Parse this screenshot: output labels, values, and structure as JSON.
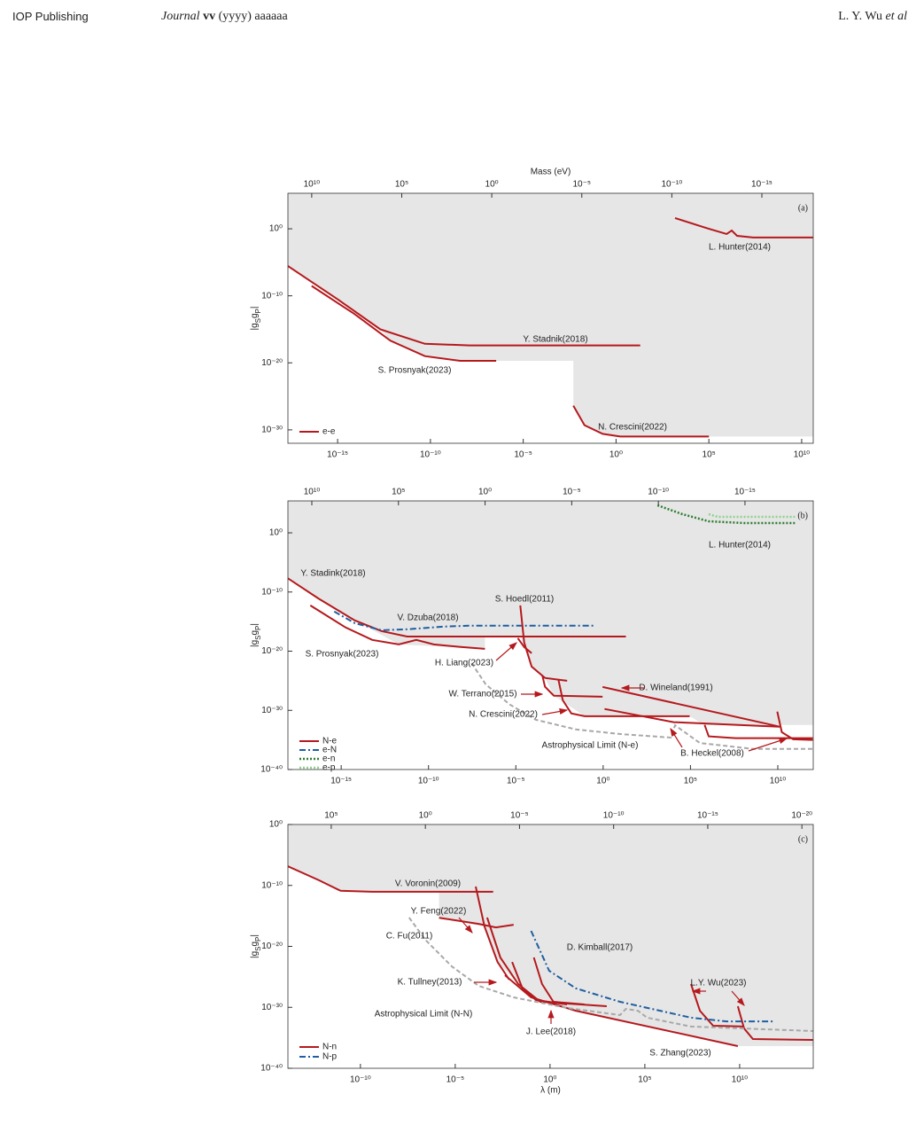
{
  "header": {
    "publisher": "IOP Publishing",
    "journal": "Journal",
    "volume": "vv",
    "year_pages": "(yyyy) aaaaaa",
    "authors": "L. Y. Wu",
    "et_al": "et al"
  },
  "chart_data": [
    {
      "type": "line",
      "panel_label": "(a)",
      "x2_label": "Mass (eV)",
      "y_label": "|gSgP|",
      "xscale": "log",
      "yscale": "log",
      "xlim": [
        2.1e-18,
        42000000000.0
      ],
      "x2lim": [
        210000000000.0,
        1.4e-18
      ],
      "ylim": [
        1e-32,
        200000.0
      ],
      "xticks": [
        {
          "value": 1e-15,
          "label": "10⁻¹⁵"
        },
        {
          "value": 1e-10,
          "label": "10⁻¹⁰"
        },
        {
          "value": 1e-05,
          "label": "10⁻⁵"
        },
        {
          "value": 1,
          "label": "10⁰"
        },
        {
          "value": 100000.0,
          "label": "10⁵"
        },
        {
          "value": 10000000000.0,
          "label": "10¹⁰"
        }
      ],
      "x2ticks": [
        {
          "value": 10000000000.0,
          "label": "10¹⁰"
        },
        {
          "value": 100000.0,
          "label": "10⁵"
        },
        {
          "value": 1,
          "label": "10⁰"
        },
        {
          "value": 1e-05,
          "label": "10⁻⁵"
        },
        {
          "value": 1e-10,
          "label": "10⁻¹⁰"
        },
        {
          "value": 1e-15,
          "label": "10⁻¹⁵"
        }
      ],
      "yticks": [
        {
          "value": 1,
          "label": "10⁰"
        },
        {
          "value": 1e-10,
          "label": "10⁻¹⁰"
        },
        {
          "value": 1e-20,
          "label": "10⁻²⁰"
        },
        {
          "value": 1e-30,
          "label": "10⁻³⁰"
        }
      ],
      "shade": {
        "color": "#e6e6e6",
        "x": [
          2e-18,
          1e-15,
          2e-13,
          7e-13,
          5e-11,
          4e-09,
          3.5e-07,
          0.005,
          0.005,
          0.02,
          0.19,
          1.7,
          40000000000.0,
          40000000000.0,
          2e-18
        ],
        "y": [
          3e-06,
          3e-11,
          1e-15,
          2e-17,
          1e-19,
          2e-20,
          2e-20,
          2e-20,
          4e-27,
          5e-30,
          2.5e-31,
          1e-31,
          1e-31,
          200000.0,
          200000.0
        ]
      },
      "legend": [
        {
          "name": "e-e",
          "color": "#b5191d",
          "dash": "solid"
        }
      ],
      "curves": [
        {
          "color": "#b5191d",
          "dash": "solid",
          "x": [
            2e-18,
            1e-15,
            2e-13,
            5e-11,
            1.3e-08,
            20
          ],
          "y": [
            3e-06,
            3e-11,
            1e-15,
            7e-18,
            4e-18,
            4e-18
          ]
        },
        {
          "color": "#b5191d",
          "dash": "solid",
          "x": [
            4e-17,
            8e-15,
            7e-13,
            5e-11,
            4e-09,
            3.5e-07
          ],
          "y": [
            3e-09,
            2e-13,
            2e-17,
            1e-19,
            2e-20,
            2e-20
          ]
        },
        {
          "color": "#b5191d",
          "dash": "solid",
          "x": [
            0.005,
            0.02,
            0.19,
            1.7,
            100000.0
          ],
          "y": [
            4e-27,
            5e-30,
            2.5e-31,
            1e-31,
            1e-31
          ]
        },
        {
          "color": "#b5191d",
          "dash": "solid",
          "x": [
            1500.0,
            100000.0,
            900000.0,
            1700000.0,
            3300000.0,
            24000000.0,
            40000000000.0
          ],
          "y": [
            40,
            1,
            0.17,
            0.56,
            0.09,
            0.05,
            0.05
          ]
        }
      ],
      "annotations": [
        "L. Hunter(2014)",
        "Y. Stadnik(2018)",
        "S. Prosnyak(2023)",
        "N. Crescini(2022)"
      ]
    },
    {
      "type": "line",
      "panel_label": "(b)",
      "y_label": "|gSgP|",
      "xscale": "log",
      "yscale": "log",
      "xlim": [
        8.9e-19,
        1070000000000.0
      ],
      "x2lim": [
        240000000000.0,
        1.15e-19
      ],
      "ylim": [
        1e-40,
        250000.0
      ],
      "xticks": [
        {
          "value": 1e-15,
          "label": "10⁻¹⁵"
        },
        {
          "value": 1e-10,
          "label": "10⁻¹⁰"
        },
        {
          "value": 1e-05,
          "label": "10⁻⁵"
        },
        {
          "value": 1,
          "label": "10⁰"
        },
        {
          "value": 100000.0,
          "label": "10⁵"
        },
        {
          "value": 10000000000.0,
          "label": "10¹⁰"
        }
      ],
      "x2ticks": [
        {
          "value": 10000000000.0,
          "label": "10¹⁰"
        },
        {
          "value": 100000.0,
          "label": "10⁵"
        },
        {
          "value": 1,
          "label": "10⁰"
        },
        {
          "value": 1e-05,
          "label": "10⁻⁵"
        },
        {
          "value": 1e-10,
          "label": "10⁻¹⁰"
        },
        {
          "value": 1e-15,
          "label": "10⁻¹⁵"
        }
      ],
      "yticks": [
        {
          "value": 1,
          "label": "10⁰"
        },
        {
          "value": 1e-10,
          "label": "10⁻¹⁰"
        },
        {
          "value": 1e-20,
          "label": "10⁻²⁰"
        },
        {
          "value": 1e-30,
          "label": "10⁻³⁰"
        },
        {
          "value": 1e-40,
          "label": "10⁻⁴⁰"
        }
      ],
      "shade": {
        "color": "#e6e6e6",
        "x": [
          9e-19,
          6e-15,
          2e-12,
          1.7e-07,
          1.7e-07,
          1.8e-05,
          8e-05,
          0.00047,
          0.0015,
          0.089,
          90000.0,
          650000.0,
          1000000000000.0,
          1000000000000.0,
          9e-19
        ],
        "y": [
          2e-08,
          1.6e-15,
          1.4e-19,
          2.5e-20,
          3e-18,
          3e-18,
          2.5e-23,
          3e-25,
          3e-28,
          1e-31,
          1e-31,
          3.4e-33,
          3.4e-33,
          250000.0,
          250000.0
        ]
      },
      "legend": [
        {
          "name": "N-e",
          "color": "#b5191d",
          "dash": "solid"
        },
        {
          "name": "e-N",
          "color": "#1f5fa0",
          "dash": "dashdot"
        },
        {
          "name": "e-n",
          "color": "#2e7d32",
          "dash": "dotted"
        },
        {
          "name": "e-p",
          "color": "#8fd18f",
          "dash": "dotted"
        }
      ],
      "curves": [
        {
          "color": "#b5191d",
          "dash": "solid",
          "x": [
            9e-19,
            5e-17,
            6e-15,
            2e-13,
            6e-12,
            7e-09,
            20
          ],
          "y": [
            2e-08,
            8e-12,
            1.6e-15,
            2.5e-17,
            3e-18,
            3e-18,
            3e-18
          ]
        },
        {
          "color": "#b5191d",
          "dash": "solid",
          "x": [
            1.7e-17,
            1.8e-15,
            6e-14,
            2e-12,
            2e-11,
            2e-10,
            7e-09,
            1.7e-07
          ],
          "y": [
            5.5e-13,
            1e-16,
            8e-19,
            1.4e-19,
            8e-19,
            1.4e-19,
            5e-20,
            2.5e-20
          ]
        },
        {
          "color": "#1f5fa0",
          "dash": "dashdot",
          "x": [
            4e-16,
            6e-15,
            2e-13,
            6e-12,
            7e-10,
            2e-08,
            0.36
          ],
          "y": [
            5e-14,
            5.5e-16,
            3.5e-17,
            5e-17,
            1.4e-16,
            2e-16,
            2e-16
          ]
        },
        {
          "color": "#b5191d",
          "dash": "solid",
          "x": [
            1.8e-05,
            3e-05,
            8e-05,
            0.00047,
            0.0087
          ],
          "y": [
            5.5e-13,
            3e-19,
            2.5e-23,
            3e-25,
            1e-25
          ]
        },
        {
          "color": "#b5191d",
          "dash": "solid",
          "x": [
            1.3e-05,
            3e-05,
            8e-05
          ],
          "y": [
            1.6e-18,
            5e-20,
            4.5e-21
          ]
        },
        {
          "color": "#b5191d",
          "dash": "solid",
          "x": [
            0.00033,
            0.00047,
            0.0015,
            0.93
          ],
          "y": [
            8e-25,
            1e-26,
            3e-28,
            2e-28
          ]
        },
        {
          "color": "#b5191d",
          "dash": "solid",
          "x": [
            0.0027,
            0.0049,
            0.015,
            0.089,
            90000.0
          ],
          "y": [
            2e-25,
            5e-29,
            3e-31,
            1e-31,
            1e-31
          ]
        },
        {
          "color": "#b5191d",
          "dash": "solid",
          "x": [
            0.93,
            13000000000.0
          ],
          "y": [
            9e-27,
            1.7e-33
          ]
        },
        {
          "color": "#b5191d",
          "dash": "solid",
          "x": [
            1.2,
            11000.0,
            13000000000.0
          ],
          "y": [
            1.7e-30,
            1e-32,
            1.7e-33
          ]
        },
        {
          "color": "#b5191d",
          "dash": "solid",
          "x": [
            650000.0,
            1100000.0,
            38000000.0,
            1000000000000.0
          ],
          "y": [
            3.4e-33,
            4e-35,
            2e-35,
            2e-35
          ]
        },
        {
          "color": "#b5191d",
          "dash": "solid",
          "x": [
            9300000000.0,
            17000000000.0,
            76000000000.0,
            1000000000000.0
          ],
          "y": [
            6e-31,
            2e-34,
            1.3e-35,
            1e-35
          ]
        },
        {
          "color": "#a8a8a8",
          "dash": "dashed",
          "x": [
            2.9e-08,
            1.9e-07,
            4.4e-06,
            0.00014,
            0.028,
            9.8,
            7600.0,
            13000.0,
            350000.0,
            400000000.0,
            1000000000000.0
          ],
          "y": [
            1e-22,
            2.5e-26,
            1e-29,
            2.5e-32,
            6e-34,
            1e-34,
            2.5e-35,
            3e-33,
            3e-36,
            3e-37,
            3e-37
          ]
        },
        {
          "color": "#2e7d32",
          "dash": "dotted",
          "x": [
            1300.0,
            35000.0,
            1100000.0,
            120000000.0,
            95000000000.0
          ],
          "y": [
            45000.0,
            1400.0,
            90,
            45,
            45
          ]
        },
        {
          "color": "#8fd18f",
          "dash": "dotted",
          "x": [
            1100000.0,
            3700000.0,
            120000000.0,
            95000000000.0
          ],
          "y": [
            1400.0,
            500,
            500,
            500
          ]
        }
      ],
      "annotations": [
        "L. Hunter(2014)",
        "Y. Stadink(2018)",
        "V. Dzuba(2018)",
        "S. Hoedl(2011)",
        "S. Prosnyak(2023)",
        "H. Liang(2023)",
        "W. Terrano(2015)",
        "D. Wineland(1991)",
        "N. Crescini(2022)",
        "Astrophysical Limit (N-e)",
        "B. Heckel(2008)"
      ]
    },
    {
      "type": "line",
      "panel_label": "(c)",
      "x_label": "λ (m)",
      "y_label": "|gSgP|",
      "xscale": "log",
      "yscale": "log",
      "xlim": [
        1.5e-14,
        76000000000000.0
      ],
      "x2lim": [
        20000000.0,
        2.5e-21
      ],
      "ylim": [
        1e-40,
        1
      ],
      "xticks": [
        {
          "value": 1e-10,
          "label": "10⁻¹⁰"
        },
        {
          "value": 1e-05,
          "label": "10⁻⁵"
        },
        {
          "value": 1,
          "label": "10⁰"
        },
        {
          "value": 100000.0,
          "label": "10⁵"
        },
        {
          "value": 10000000000.0,
          "label": "10¹⁰"
        }
      ],
      "x2ticks": [
        {
          "value": 100000.0,
          "label": "10⁵"
        },
        {
          "value": 1,
          "label": "10⁰"
        },
        {
          "value": 1e-05,
          "label": "10⁻⁵"
        },
        {
          "value": 1e-10,
          "label": "10⁻¹⁰"
        },
        {
          "value": 1e-15,
          "label": "10⁻¹⁵"
        },
        {
          "value": 1e-20,
          "label": "10⁻²⁰"
        }
      ],
      "yticks": [
        {
          "value": 1,
          "label": "10⁰"
        },
        {
          "value": 1e-10,
          "label": "10⁻¹⁰"
        },
        {
          "value": 1e-20,
          "label": "10⁻²⁰"
        },
        {
          "value": 1e-30,
          "label": "10⁻³⁰"
        },
        {
          "value": 1e-40,
          "label": "10⁻⁴⁰"
        }
      ],
      "shade": {
        "color": "#e6e6e6",
        "x": [
          1.5e-14,
          6.5e-13,
          9e-12,
          4e-10,
          1.4e-06,
          1.4e-06,
          0.00035,
          0.0017,
          0.021,
          0.31,
          23,
          8000000000.0,
          76000000000000.0,
          76000000000000.0,
          1.5e-14
        ],
        "y": [
          1.4e-07,
          7e-10,
          1.3e-11,
          9e-12,
          9e-12,
          5e-16,
          1.9e-17,
          2.8e-23,
          6.6e-27,
          8e-30,
          2.8e-31,
          4.4e-37,
          4.4e-37,
          1,
          1
        ]
      },
      "legend": [
        {
          "name": "N-n",
          "color": "#b5191d",
          "dash": "solid"
        },
        {
          "name": "N-p",
          "color": "#1f5fa0",
          "dash": "dashdot"
        }
      ],
      "curves": [
        {
          "color": "#b5191d",
          "dash": "solid",
          "x": [
            1.5e-14,
            6.5e-13,
            9e-12,
            4e-10,
            0.001
          ],
          "y": [
            1.4e-07,
            7e-10,
            1.3e-11,
            9e-12,
            9e-12
          ]
        },
        {
          "color": "#b5191d",
          "dash": "solid",
          "x": [
            1.4e-06,
            0.00017,
            0.0014,
            0.012
          ],
          "y": [
            5e-16,
            5e-17,
            1.3e-17,
            3.6e-17
          ]
        },
        {
          "color": "#b5191d",
          "dash": "solid",
          "x": [
            0.00012,
            0.00035,
            0.0017,
            0.007
          ],
          "y": [
            6.6e-11,
            1.9e-17,
            2.8e-23,
            3.5e-26
          ]
        },
        {
          "color": "#b5191d",
          "dash": "solid",
          "x": [
            0.00048,
            0.0024,
            0.021,
            0.31,
            980
          ],
          "y": [
            5.4e-16,
            1.5e-22,
            6.6e-27,
            8e-30,
            1.5e-30
          ]
        },
        {
          "color": "#b5191d",
          "dash": "solid",
          "x": [
            0.01,
            0.035,
            0.18,
            7.8
          ],
          "y": [
            2.8e-23,
            1.3e-27,
            1.6e-29,
            3e-30
          ]
        },
        {
          "color": "#b5191d",
          "dash": "solid",
          "x": [
            0.14,
            0.38,
            1.5,
            66
          ],
          "y": [
            1.5e-22,
            6.6e-27,
            8e-30,
            3e-30
          ]
        },
        {
          "color": "#b5191d",
          "dash": "solid",
          "x": [
            0.0042,
            0.1,
            23,
            8000000000.0
          ],
          "y": [
            1.9e-25,
            4.4e-29,
            2.8e-31,
            4.4e-37
          ]
        },
        {
          "color": "#b5191d",
          "dash": "solid",
          "x": [
            27000000.0,
            80000000.0,
            400000000.0,
            17000000000.0
          ],
          "y": [
            6.6e-27,
            2.8e-31,
            9.5e-34,
            7e-34
          ]
        },
        {
          "color": "#b5191d",
          "dash": "solid",
          "x": [
            8000000000.0,
            17000000000.0,
            50000000000.0,
            75000000000000.0
          ],
          "y": [
            1.5e-30,
            3.5e-34,
            6.3e-36,
            4.5e-36
          ]
        },
        {
          "color": "#1f5fa0",
          "dash": "dashdot",
          "x": [
            0.1,
            0.9,
            23,
            4900.0,
            27000000.0,
            2000000000.0,
            740000000000.0
          ],
          "y": [
            3.5e-18,
            1e-24,
            1.3e-27,
            8e-30,
            2e-32,
            5e-33,
            5e-33
          ]
        },
        {
          "color": "#a8a8a8",
          "dash": "dashed",
          "x": [
            3.7e-08,
            2.6e-07,
            6.5e-06,
            0.00017,
            0.012,
            7.8,
            4900.0,
            10000.0,
            43000.0,
            130000.0,
            27000000.0,
            75000000000000.0
          ],
          "y": [
            5.4e-16,
            1.3e-19,
            5.4e-24,
            3.4e-27,
            4.4e-29,
            8e-31,
            5.4e-32,
            5.6e-31,
            2.8e-31,
            2e-32,
            7e-34,
            1.3e-34
          ]
        }
      ],
      "annotations": [
        "V. Voronin(2009)",
        "Y. Feng(2022)",
        "C. Fu(2011)",
        "D. Kimball(2017)",
        "K. Tullney(2013)",
        "L.Y. Wu(2023)",
        "Astrophysical Limit (N-N)",
        "J. Lee(2018)",
        "S. Zhang(2023)"
      ]
    }
  ]
}
